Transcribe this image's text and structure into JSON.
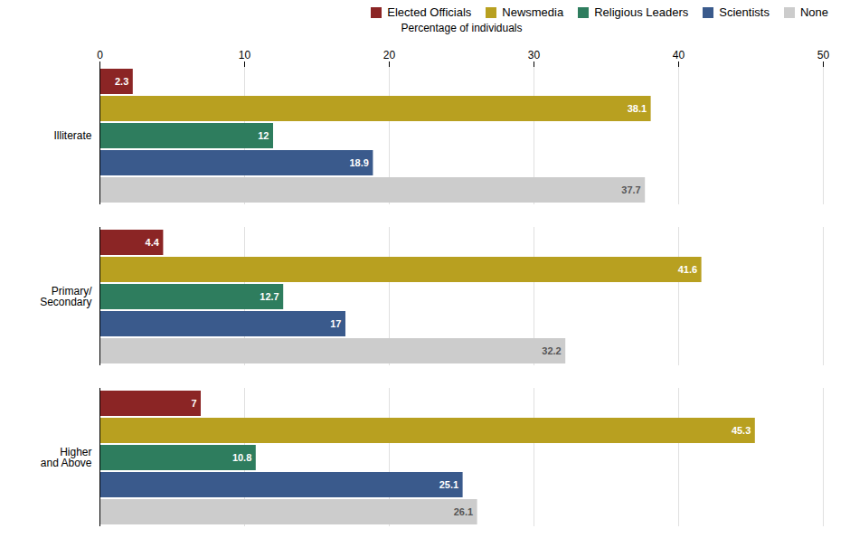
{
  "chart_data": {
    "type": "bar",
    "orientation": "horizontal",
    "categories": [
      "Illiterate",
      "Primary/\nSecondary",
      "Higher\nand Above"
    ],
    "series": [
      {
        "name": "Elected Officials",
        "color": "#8B2525",
        "values": [
          2.3,
          4.4,
          7.0
        ]
      },
      {
        "name": "Newsmedia",
        "color": "#B8A020",
        "values": [
          38.1,
          41.6,
          45.3
        ]
      },
      {
        "name": "Religious Leaders",
        "color": "#2E7D5E",
        "values": [
          12,
          12.7,
          10.8
        ]
      },
      {
        "name": "Scientists",
        "color": "#3A5A8C",
        "values": [
          18.9,
          17.0,
          25.1
        ]
      },
      {
        "name": "None",
        "color": "#CCCCCC",
        "values": [
          37.7,
          32.2,
          26.1
        ]
      }
    ],
    "xlabel": "Percentage of individuals",
    "xlim": [
      0,
      50
    ],
    "xticks": [
      0,
      10,
      20,
      30,
      40,
      50
    ],
    "grid": true,
    "legend": "upper right",
    "data_labels": true
  }
}
